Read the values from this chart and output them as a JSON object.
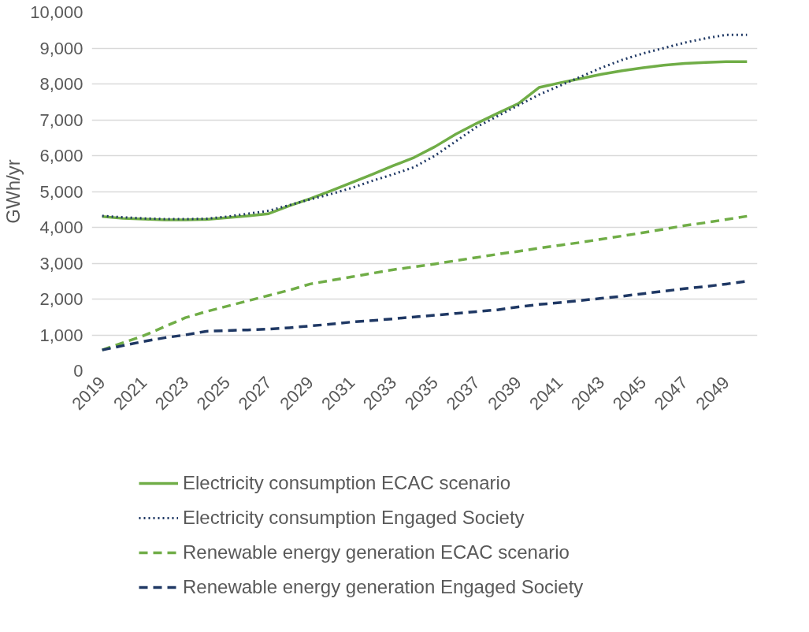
{
  "chart_data": {
    "type": "line",
    "ylabel": "GWh/yr",
    "categories": [
      "2019",
      null,
      "2021",
      null,
      "2023",
      null,
      "2025",
      null,
      "2027",
      null,
      "2029",
      null,
      "2031",
      null,
      "2033",
      null,
      "2035",
      null,
      "2037",
      null,
      "2039",
      null,
      "2041",
      null,
      "2043",
      null,
      "2045",
      null,
      "2047",
      null,
      "2049",
      null
    ],
    "ylim": [
      0,
      10000
    ],
    "yticks": [
      {
        "value": 0,
        "label": "0"
      },
      {
        "value": 1000,
        "label": "1,000"
      },
      {
        "value": 2000,
        "label": "2,000"
      },
      {
        "value": 3000,
        "label": "3,000"
      },
      {
        "value": 4000,
        "label": "4,000"
      },
      {
        "value": 5000,
        "label": "5,000"
      },
      {
        "value": 6000,
        "label": "6,000"
      },
      {
        "value": 7000,
        "label": "7,000"
      },
      {
        "value": 8000,
        "label": "8,000"
      },
      {
        "value": 9000,
        "label": "9,000"
      },
      {
        "value": 10000,
        "label": "10,000"
      }
    ],
    "grid": "y",
    "legend": "bottom",
    "marker": "none",
    "series": [
      {
        "name": "Electricity consumption ECAC scenario",
        "color": "#70ad47",
        "line_style": "solid",
        "values": [
          4300,
          4250,
          4230,
          4210,
          4210,
          4220,
          4270,
          4320,
          4380,
          4600,
          4800,
          5020,
          5250,
          5480,
          5720,
          5950,
          6250,
          6600,
          6900,
          7180,
          7450,
          7900,
          8030,
          8150,
          8270,
          8370,
          8450,
          8520,
          8570,
          8600,
          8620,
          8620
        ]
      },
      {
        "name": "Electricity consumption Engaged Society",
        "color": "#1f3864",
        "line_style": "dotted",
        "values": [
          4320,
          4280,
          4250,
          4230,
          4230,
          4240,
          4300,
          4380,
          4460,
          4620,
          4780,
          4930,
          5100,
          5300,
          5480,
          5680,
          6000,
          6400,
          6800,
          7100,
          7400,
          7700,
          7950,
          8200,
          8450,
          8670,
          8850,
          9000,
          9150,
          9270,
          9370,
          9370
        ]
      },
      {
        "name": "Renewable energy generation ECAC scenario",
        "color": "#70ad47",
        "line_style": "dashed",
        "values": [
          580,
          780,
          980,
          1230,
          1480,
          1650,
          1800,
          1950,
          2100,
          2250,
          2420,
          2520,
          2620,
          2720,
          2820,
          2900,
          2980,
          3070,
          3160,
          3250,
          3330,
          3420,
          3500,
          3580,
          3670,
          3760,
          3850,
          3950,
          4050,
          4130,
          4220,
          4310
        ]
      },
      {
        "name": "Renewable energy generation Engaged Society",
        "color": "#1f3864",
        "line_style": "dashed",
        "values": [
          580,
          700,
          820,
          920,
          1000,
          1100,
          1120,
          1140,
          1160,
          1200,
          1250,
          1300,
          1360,
          1400,
          1450,
          1500,
          1550,
          1600,
          1650,
          1700,
          1780,
          1850,
          1900,
          1960,
          2020,
          2080,
          2150,
          2220,
          2290,
          2350,
          2420,
          2500
        ]
      }
    ]
  }
}
